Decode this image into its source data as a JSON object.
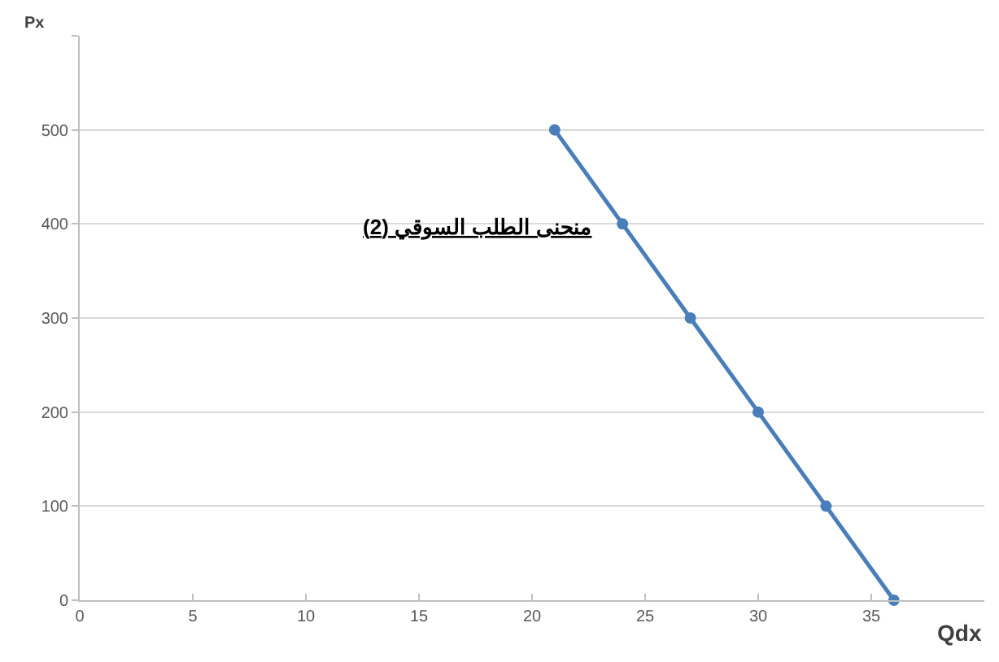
{
  "chart_data": {
    "type": "line",
    "title": "منحنى الطلب السوقي (2)",
    "xlabel": "Qdx",
    "ylabel": "Px",
    "x": [
      21,
      24,
      27,
      30,
      33,
      36
    ],
    "series": [
      {
        "color": "#4a7ebb",
        "values": [
          500,
          400,
          300,
          200,
          100,
          0
        ]
      }
    ],
    "xlim": [
      0,
      40
    ],
    "xticks": [
      0,
      5,
      10,
      15,
      20,
      25,
      30,
      35
    ],
    "ylim": [
      0,
      600
    ],
    "yticks": [
      0,
      100,
      200,
      300,
      400,
      500,
      {
        "value": 600,
        "label": null
      }
    ],
    "grid": "y",
    "marker": "circle",
    "line_style": "solid"
  }
}
